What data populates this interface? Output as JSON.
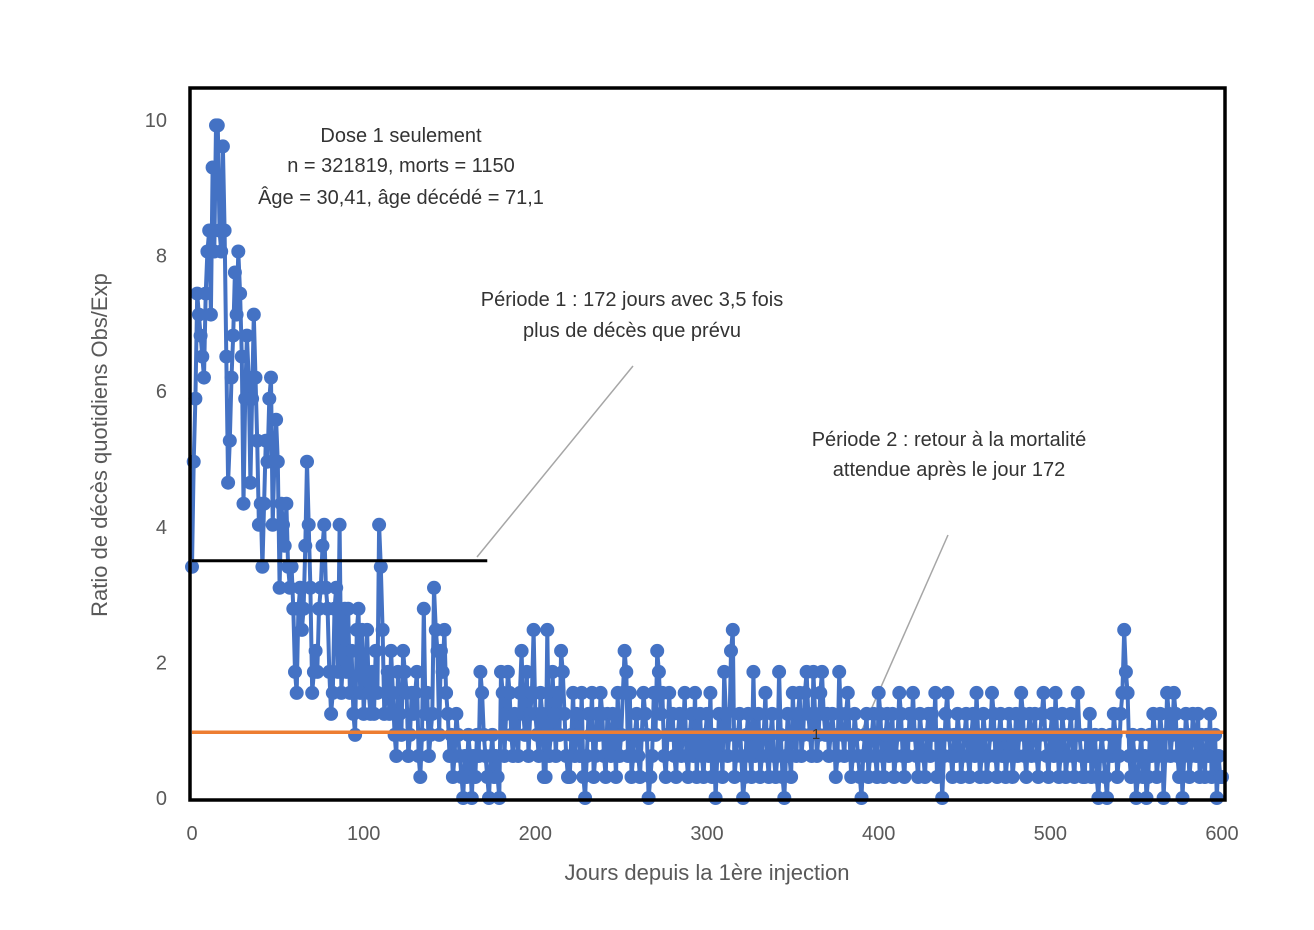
{
  "chart_data": {
    "type": "line",
    "title": "",
    "xlabel": "Jours depuis la 1ère injection",
    "ylabel": "Ratio de décès quotidiens Obs/Exp",
    "xlim": [
      0,
      600
    ],
    "ylim": [
      0,
      10
    ],
    "xticks": [
      "0",
      "100",
      "200",
      "300",
      "400",
      "500",
      "600"
    ],
    "yticks": [
      "0",
      "2",
      "4",
      "6",
      "8",
      "10"
    ],
    "grid": false,
    "legend": "none",
    "colors": {
      "series": "#4472C4",
      "expected_line": "#ED7D31",
      "period1_line": "#000000",
      "leader": "#A6A6A6"
    },
    "annotations": {
      "cohort": [
        "Dose 1 seulement",
        "n = 321819, morts = 1150",
        "Âge = 30,41, âge décédé = 71,1"
      ],
      "period1": [
        "Période 1 : 172 jours avec 3,5 fois",
        "plus de décès que prévu"
      ],
      "period2": [
        "Période 2 : retour à la mortalité",
        "attendue après le jour 172"
      ],
      "expected_label": "1"
    },
    "reference_lines": {
      "expected": {
        "y": 0.97,
        "x": [
          0,
          600
        ]
      },
      "period1_mean": {
        "y": 3.5,
        "x": [
          0,
          172
        ]
      }
    },
    "x_start": 0,
    "x_step": 1,
    "values": [
      3.41,
      4.96,
      5.89,
      7.44,
      7.13,
      6.82,
      6.51,
      6.2,
      7.44,
      8.06,
      8.37,
      7.13,
      9.3,
      8.06,
      9.92,
      9.92,
      8.37,
      8.06,
      9.61,
      8.37,
      6.51,
      4.65,
      5.27,
      6.2,
      6.82,
      7.75,
      7.13,
      8.06,
      7.44,
      6.51,
      4.34,
      5.89,
      6.82,
      6.2,
      4.65,
      5.89,
      7.13,
      6.2,
      5.27,
      4.03,
      4.34,
      3.41,
      4.34,
      5.27,
      4.96,
      5.89,
      6.2,
      4.03,
      4.96,
      5.58,
      4.96,
      3.1,
      4.34,
      4.03,
      3.72,
      4.34,
      3.41,
      3.1,
      3.41,
      2.79,
      1.86,
      1.55,
      2.79,
      3.1,
      2.48,
      2.79,
      3.72,
      4.96,
      4.03,
      3.1,
      1.55,
      1.86,
      2.17,
      1.86,
      2.79,
      3.1,
      3.72,
      4.03,
      3.1,
      2.79,
      1.86,
      1.24,
      1.55,
      2.79,
      3.1,
      1.86,
      4.03,
      1.55,
      2.17,
      2.79,
      1.86,
      2.79,
      1.55,
      2.17,
      1.24,
      0.93,
      2.48,
      2.79,
      1.55,
      2.48,
      1.24,
      1.86,
      2.48,
      1.55,
      1.24,
      1.86,
      1.24,
      2.17,
      1.55,
      4.03,
      3.41,
      2.48,
      1.24,
      1.55,
      1.86,
      1.24,
      2.17,
      1.55,
      0.93,
      0.62,
      1.86,
      1.24,
      0.93,
      2.17,
      1.86,
      1.55,
      0.62,
      0.93,
      1.55,
      1.24,
      1.55,
      1.86,
      0.62,
      0.31,
      0.93,
      2.79,
      1.24,
      1.55,
      0.62,
      0.93,
      1.24,
      3.1,
      2.48,
      2.17,
      0.93,
      2.17,
      1.86,
      2.48,
      1.55,
      1.24,
      0.62,
      0.93,
      0.31,
      0.62,
      1.24,
      0.93,
      0.62,
      0.31,
      0,
      0.62,
      0.31,
      0.93,
      0.62,
      0,
      0.62,
      0.31,
      0.93,
      0.62,
      1.86,
      1.55,
      0.93,
      0.62,
      0.31,
      0,
      0.62,
      0.93,
      0.31,
      0.62,
      0.31,
      0,
      1.86,
      1.55,
      0.62,
      1.24,
      1.86,
      1.55,
      0.93,
      0.62,
      1.24,
      0.93,
      0.62,
      1.55,
      2.17,
      1.24,
      0.93,
      1.86,
      0.62,
      1.24,
      1.55,
      2.48,
      1.24,
      0.93,
      0.62,
      1.55,
      1.24,
      0.31,
      0.31,
      2.48,
      0.62,
      0.93,
      1.86,
      1.24,
      0.62,
      1.55,
      0.93,
      2.17,
      1.86,
      1.24,
      0.62,
      0.31,
      0.31,
      0.93,
      1.55,
      0.62,
      1.24,
      0.93,
      0.62,
      1.55,
      0.31,
      0,
      0.62,
      1.24,
      0.93,
      1.55,
      0.31,
      0.62,
      1.24,
      0.93,
      1.55,
      1.24,
      0.62,
      0.31,
      1.24,
      0.93,
      0.62,
      1.24,
      0.93,
      0.31,
      1.55,
      0.62,
      0.93,
      1.55,
      2.17,
      1.86,
      0.62,
      1.55,
      0.31,
      0.62,
      0.93,
      1.24,
      0.62,
      0.31,
      0.93,
      1.55,
      1.24,
      0.93,
      0,
      0.31,
      0.62,
      1.55,
      0.93,
      2.17,
      1.86,
      1.24,
      1.55,
      0.62,
      0.31,
      0.93,
      1.55,
      0.93,
      1.24,
      0.62,
      0.31,
      0.93,
      1.24,
      0.62,
      0.93,
      1.55,
      0.62,
      0.31,
      0.93,
      1.24,
      0.62,
      1.55,
      0.31,
      0.93,
      1.24,
      0.62,
      0.31,
      0.93,
      1.24,
      0.62,
      1.55,
      0.31,
      0.93,
      0,
      0.62,
      1.24,
      0.93,
      0.31,
      1.86,
      1.24,
      0.62,
      0.93,
      2.17,
      2.48,
      0.31,
      0.62,
      0.93,
      1.24,
      0.62,
      0,
      0.31,
      0.93,
      1.24,
      0.62,
      0.31,
      1.86,
      0.62,
      0.93,
      1.24,
      0.31,
      0.62,
      0.93,
      1.55,
      0.62,
      0.31,
      0.93,
      1.24,
      0.62,
      0.31,
      0.62,
      1.86,
      0.93,
      0.31,
      0,
      0.62,
      1.24,
      0.62,
      0.31,
      1.55,
      0.93,
      0.62,
      1.24,
      1.55,
      0.62,
      0.93,
      1.55,
      1.86,
      1.24,
      0.93,
      0.62,
      1.86,
      1.24,
      0.62,
      0.93,
      1.55,
      1.86,
      1.24,
      0.93,
      1.24,
      0.62,
      0.93,
      1.24,
      0.93,
      0.31,
      0.62,
      1.86,
      1.24,
      0.93,
      0.62,
      1.24,
      1.55,
      0.93,
      0.31,
      0.62,
      1.24,
      0.93,
      0.62,
      0.31,
      0,
      0.62,
      0.93,
      1.24,
      0.31,
      0.62,
      0.93,
      1.24,
      0.62,
      0.31,
      1.55,
      1.24,
      0.62,
      0.31,
      0.93,
      1.24,
      0.62,
      0.93,
      1.24,
      0.31,
      0.62,
      0.93,
      1.55,
      1.24,
      0.62,
      0.31,
      0.93,
      0.62,
      1.24,
      0.93,
      1.55,
      0.93,
      0.62,
      0.31,
      1.24,
      0.93,
      0.62,
      0.31,
      0.93,
      1.24,
      0.62,
      1.24,
      0.93,
      1.55,
      0.31,
      0.62,
      0.93,
      0,
      0.62,
      1.24,
      1.55,
      0.93,
      0.62,
      0.31,
      0.93,
      0.62,
      1.24,
      0.93,
      0.31,
      0.62,
      0.93,
      1.24,
      0.62,
      0.31,
      0.93,
      1.24,
      0.62,
      1.55,
      0.93,
      0.31,
      0.62,
      1.24,
      0.93,
      0.31,
      0.62,
      0.93,
      1.55,
      1.24,
      0.62,
      0.31,
      0.93,
      1.24,
      0.62,
      0.93,
      0.31,
      0.62,
      1.24,
      0.93,
      0.31,
      0.62,
      1.24,
      0.62,
      0.93,
      1.55,
      1.24,
      0.62,
      0.31,
      0.93,
      1.24,
      0.62,
      0.93,
      1.24,
      0.62,
      0.31,
      0.93,
      1.24,
      1.55,
      0.93,
      0.62,
      0.31,
      0.93,
      1.24,
      0.62,
      1.55,
      0.93,
      0.31,
      0.62,
      1.24,
      0.93,
      0.31,
      0.62,
      0.93,
      1.24,
      0.62,
      0.31,
      0.93,
      1.55,
      0.93,
      0.62,
      0.31,
      0.31,
      0.93,
      0.62,
      1.24,
      0.31,
      0.62,
      0.93,
      0.31,
      0,
      0.62,
      0.93,
      0.62,
      0.31,
      0,
      0.62,
      0.93,
      0.62,
      1.24,
      0.93,
      0.31,
      0.62,
      1.24,
      1.55,
      2.48,
      1.86,
      1.55,
      0.62,
      0.31,
      0.93,
      0.62,
      0,
      0.31,
      0.62,
      0.93,
      0.31,
      0.62,
      0,
      0.31,
      0.93,
      0.62,
      1.24,
      0.93,
      0.31,
      0.62,
      1.24,
      0.93,
      0,
      0.62,
      1.55,
      1.24,
      0.62,
      0.93,
      1.55,
      1.24,
      0.62,
      0.31,
      0.93,
      0,
      0.62,
      1.24,
      0.93,
      0.31,
      0.62,
      1.24,
      0.93,
      0.62,
      1.24,
      0.31,
      0.93,
      0.62,
      0.31,
      0.93,
      0.62,
      1.24,
      0.31,
      0.62,
      0.93,
      0,
      0.62,
      0.31,
      0.31
    ]
  }
}
